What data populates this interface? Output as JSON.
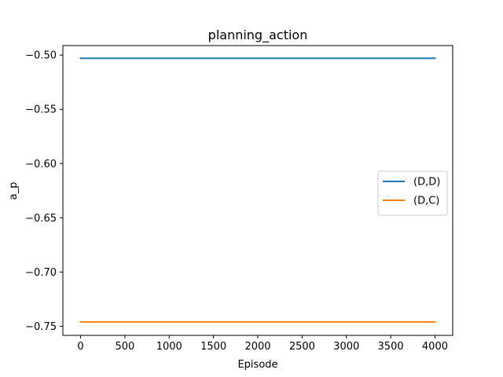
{
  "chart_data": {
    "type": "line",
    "title": "planning_action",
    "xlabel": "Episode",
    "ylabel": "a_p",
    "xlim": [
      -200,
      4200
    ],
    "ylim": [
      -0.7584,
      -0.4912
    ],
    "xticks": [
      0,
      500,
      1000,
      1500,
      2000,
      2500,
      3000,
      3500,
      4000
    ],
    "xtick_labels": [
      "0",
      "500",
      "1000",
      "1500",
      "2000",
      "2500",
      "3000",
      "3500",
      "4000"
    ],
    "yticks": [
      -0.5,
      -0.55,
      -0.6,
      -0.65,
      -0.7,
      -0.75
    ],
    "ytick_labels": [
      "−0.50",
      "−0.55",
      "−0.60",
      "−0.65",
      "−0.70",
      "−0.75"
    ],
    "grid": false,
    "legend_position": "center-right",
    "series": [
      {
        "name": "(D,D)",
        "color": "#1f77b4",
        "x": [
          0,
          4000
        ],
        "y": [
          -0.503,
          -0.503
        ]
      },
      {
        "name": "(D,C)",
        "color": "#ff7f0e",
        "x": [
          0,
          4000
        ],
        "y": [
          -0.746,
          -0.746
        ]
      }
    ]
  }
}
